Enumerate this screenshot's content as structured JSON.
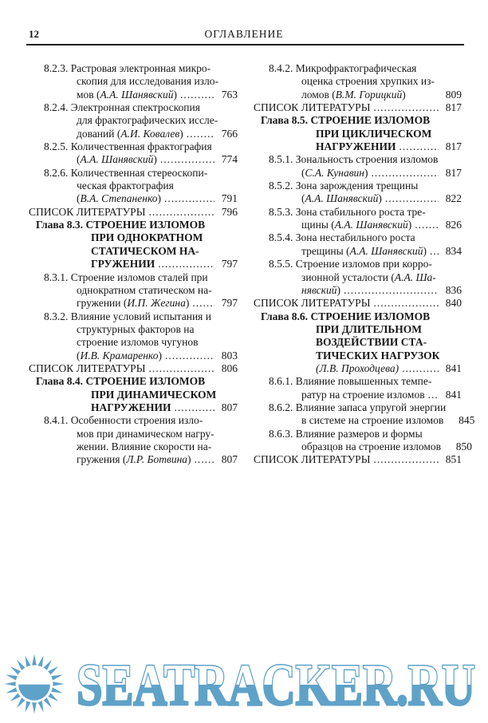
{
  "header": {
    "page_number": "12",
    "title": "ОГЛАВЛЕНИЕ"
  },
  "watermark": {
    "text": "SEATRACKER.RU",
    "color": "#5fa2c8",
    "icon": "sun"
  },
  "colors": {
    "text": "#161616",
    "rule": "#1c1c1c",
    "watermark_blue": "#5fa2c8",
    "background": "#ffffff"
  },
  "toc": {
    "columns": [
      {
        "entries": [
          {
            "kind": "item",
            "label": "8.2.3.",
            "lines": [
              {
                "segs": [
                  {
                    "t": "Растровая электронная микро-"
                  }
                ]
              },
              {
                "segs": [
                  {
                    "t": "скопия для исследования изло-"
                  }
                ]
              },
              {
                "segs": [
                  {
                    "t": "мов ("
                  },
                  {
                    "t": "А.А. Шанявский",
                    "i": true
                  },
                  {
                    "t": ")"
                  }
                ],
                "dots": true,
                "page": "763"
              }
            ]
          },
          {
            "kind": "item",
            "label": "8.2.4.",
            "lines": [
              {
                "segs": [
                  {
                    "t": "Электронная спектроскопия"
                  }
                ]
              },
              {
                "segs": [
                  {
                    "t": "для фрактографических иссле-"
                  }
                ]
              },
              {
                "segs": [
                  {
                    "t": "дований ("
                  },
                  {
                    "t": "А.И. Ковалев",
                    "i": true
                  },
                  {
                    "t": ")"
                  }
                ],
                "dots": true,
                "page": "766"
              }
            ]
          },
          {
            "kind": "item",
            "label": "8.2.5.",
            "lines": [
              {
                "segs": [
                  {
                    "t": "Количественная фрактография"
                  }
                ]
              },
              {
                "segs": [
                  {
                    "t": "("
                  },
                  {
                    "t": "А.А. Шанявский",
                    "i": true
                  },
                  {
                    "t": ")"
                  }
                ],
                "dots": true,
                "page": "774"
              }
            ]
          },
          {
            "kind": "item",
            "label": "8.2.6.",
            "lines": [
              {
                "segs": [
                  {
                    "t": "Количественная стереоскопи-"
                  }
                ]
              },
              {
                "segs": [
                  {
                    "t": "ческая фрактография"
                  }
                ]
              },
              {
                "segs": [
                  {
                    "t": "("
                  },
                  {
                    "t": "В.А. Степаненко",
                    "i": true
                  },
                  {
                    "t": ")"
                  }
                ],
                "dots": true,
                "page": "791"
              }
            ]
          },
          {
            "kind": "list",
            "label": "",
            "lines": [
              {
                "segs": [
                  {
                    "t": "СПИСОК ЛИТЕРАТУРЫ"
                  }
                ],
                "dots": true,
                "page": "796"
              }
            ]
          },
          {
            "kind": "chapter",
            "label": "Глава 8.3.",
            "lines": [
              {
                "segs": [
                  {
                    "t": "СТРОЕНИЕ ИЗЛОМОВ"
                  }
                ]
              },
              {
                "segs": [
                  {
                    "t": "ПРИ ОДНОКРАТНОМ"
                  }
                ]
              },
              {
                "segs": [
                  {
                    "t": "СТАТИЧЕСКОМ НА-"
                  }
                ]
              },
              {
                "segs": [
                  {
                    "t": "ГРУЖЕНИИ"
                  }
                ],
                "dots": true,
                "page": "797"
              }
            ]
          },
          {
            "kind": "item",
            "label": "8.3.1.",
            "lines": [
              {
                "segs": [
                  {
                    "t": "Строение изломов сталей при"
                  }
                ]
              },
              {
                "segs": [
                  {
                    "t": "однократном статическом на-"
                  }
                ]
              },
              {
                "segs": [
                  {
                    "t": "гружении ("
                  },
                  {
                    "t": "И.П. Жегина",
                    "i": true
                  },
                  {
                    "t": ")"
                  }
                ],
                "dots": true,
                "page": "797"
              }
            ]
          },
          {
            "kind": "item",
            "label": "8.3.2.",
            "lines": [
              {
                "segs": [
                  {
                    "t": "Влияние условий испытания и"
                  }
                ]
              },
              {
                "segs": [
                  {
                    "t": "структурных факторов на"
                  }
                ]
              },
              {
                "segs": [
                  {
                    "t": "строение изломов чугунов"
                  }
                ]
              },
              {
                "segs": [
                  {
                    "t": "("
                  },
                  {
                    "t": "И.В. Крамаренко",
                    "i": true
                  },
                  {
                    "t": ")"
                  }
                ],
                "dots": true,
                "page": "803"
              }
            ]
          },
          {
            "kind": "list",
            "label": "",
            "lines": [
              {
                "segs": [
                  {
                    "t": "СПИСОК ЛИТЕРАТУРЫ"
                  }
                ],
                "dots": true,
                "page": "806"
              }
            ]
          },
          {
            "kind": "chapter",
            "label": "Глава 8.4.",
            "lines": [
              {
                "segs": [
                  {
                    "t": "СТРОЕНИЕ ИЗЛОМОВ"
                  }
                ]
              },
              {
                "segs": [
                  {
                    "t": "ПРИ ДИНАМИЧЕСКОМ"
                  }
                ]
              },
              {
                "segs": [
                  {
                    "t": "НАГРУЖЕНИИ"
                  }
                ],
                "dots": true,
                "page": "807"
              }
            ]
          },
          {
            "kind": "item",
            "label": "8.4.1.",
            "lines": [
              {
                "segs": [
                  {
                    "t": "Особенности строения изло-"
                  }
                ]
              },
              {
                "segs": [
                  {
                    "t": "мов при динамическом нагру-"
                  }
                ]
              },
              {
                "segs": [
                  {
                    "t": "жении. Влияние скорости на-"
                  }
                ]
              },
              {
                "segs": [
                  {
                    "t": "гружения ("
                  },
                  {
                    "t": "Л.Р. Ботвина",
                    "i": true
                  },
                  {
                    "t": ")"
                  }
                ],
                "dots": true,
                "page": "807"
              }
            ]
          }
        ]
      },
      {
        "entries": [
          {
            "kind": "item",
            "label": "8.4.2.",
            "lines": [
              {
                "segs": [
                  {
                    "t": "Микрофрактографическая"
                  }
                ]
              },
              {
                "segs": [
                  {
                    "t": "оценка строения хрупких из-"
                  }
                ]
              },
              {
                "segs": [
                  {
                    "t": "ломов ("
                  },
                  {
                    "t": "В.М. Горицкий",
                    "i": true
                  },
                  {
                    "t": ")"
                  }
                ],
                "dots": false,
                "page": "809"
              }
            ]
          },
          {
            "kind": "list",
            "label": "",
            "lines": [
              {
                "segs": [
                  {
                    "t": "СПИСОК ЛИТЕРАТУРЫ"
                  }
                ],
                "dots": true,
                "page": "817"
              }
            ]
          },
          {
            "kind": "chapter",
            "label": "Глава 8.5.",
            "lines": [
              {
                "segs": [
                  {
                    "t": "СТРОЕНИЕ ИЗЛОМОВ"
                  }
                ]
              },
              {
                "segs": [
                  {
                    "t": "ПРИ ЦИКЛИЧЕСКОМ"
                  }
                ]
              },
              {
                "segs": [
                  {
                    "t": "НАГРУЖЕНИИ"
                  }
                ],
                "dots": true,
                "page": "817"
              }
            ]
          },
          {
            "kind": "item",
            "label": "8.5.1.",
            "lines": [
              {
                "segs": [
                  {
                    "t": "Зональность строения изломов"
                  }
                ]
              },
              {
                "segs": [
                  {
                    "t": "("
                  },
                  {
                    "t": "С.А. Кунавин",
                    "i": true
                  },
                  {
                    "t": ")"
                  }
                ],
                "dots": true,
                "page": "817"
              }
            ]
          },
          {
            "kind": "item",
            "label": "8.5.2.",
            "lines": [
              {
                "segs": [
                  {
                    "t": "Зона зарождения трещины"
                  }
                ]
              },
              {
                "segs": [
                  {
                    "t": "("
                  },
                  {
                    "t": "А.А. Шанявский",
                    "i": true
                  },
                  {
                    "t": ")"
                  }
                ],
                "dots": true,
                "page": "822"
              }
            ]
          },
          {
            "kind": "item",
            "label": "8.5.3.",
            "lines": [
              {
                "segs": [
                  {
                    "t": "Зона стабильного роста тре-"
                  }
                ]
              },
              {
                "segs": [
                  {
                    "t": "щины ("
                  },
                  {
                    "t": "А.А. Шанявский",
                    "i": true
                  },
                  {
                    "t": ")"
                  }
                ],
                "dots": true,
                "page": "826"
              }
            ]
          },
          {
            "kind": "item",
            "label": "8.5.4.",
            "lines": [
              {
                "segs": [
                  {
                    "t": "Зона нестабильного роста"
                  }
                ]
              },
              {
                "segs": [
                  {
                    "t": "трещины ("
                  },
                  {
                    "t": "А.А. Шанявский",
                    "i": true
                  },
                  {
                    "t": ")"
                  }
                ],
                "dots": true,
                "page": "834"
              }
            ]
          },
          {
            "kind": "item",
            "label": "8.5.5.",
            "lines": [
              {
                "segs": [
                  {
                    "t": "Строение изломов при корро-"
                  }
                ]
              },
              {
                "segs": [
                  {
                    "t": "зионной усталости ("
                  },
                  {
                    "t": "А.А. Ша-",
                    "i": true
                  }
                ]
              },
              {
                "segs": [
                  {
                    "t": "нявский",
                    "i": true
                  },
                  {
                    "t": ")"
                  }
                ],
                "dots": true,
                "page": "836"
              }
            ]
          },
          {
            "kind": "list",
            "label": "",
            "lines": [
              {
                "segs": [
                  {
                    "t": "СПИСОК ЛИТЕРАТУРЫ"
                  }
                ],
                "dots": true,
                "page": "840"
              }
            ]
          },
          {
            "kind": "chapter",
            "label": "Глава 8.6.",
            "lines": [
              {
                "segs": [
                  {
                    "t": "СТРОЕНИЕ ИЗЛОМОВ"
                  }
                ]
              },
              {
                "segs": [
                  {
                    "t": "ПРИ ДЛИТЕЛЬНОМ"
                  }
                ]
              },
              {
                "segs": [
                  {
                    "t": "ВОЗДЕЙСТВИИ СТА-"
                  }
                ]
              },
              {
                "segs": [
                  {
                    "t": "ТИЧЕСКИХ НАГРУЗОК"
                  }
                ]
              },
              {
                "segs": [
                  {
                    "t": "(Л.В. Проходцева)",
                    "i": true
                  }
                ],
                "dots": true,
                "page": "841"
              }
            ]
          },
          {
            "kind": "item",
            "label": "8.6.1.",
            "lines": [
              {
                "segs": [
                  {
                    "t": "Влияние повышенных темпе-"
                  }
                ]
              },
              {
                "segs": [
                  {
                    "t": "ратур на строение изломов"
                  }
                ],
                "dots": true,
                "page": "841"
              }
            ]
          },
          {
            "kind": "item",
            "label": "8.6.2.",
            "lines": [
              {
                "segs": [
                  {
                    "t": "Влияние запаса упругой энергии"
                  }
                ]
              },
              {
                "segs": [
                  {
                    "t": "в системе на строение изломов"
                  }
                ],
                "dots": false,
                "page": "845"
              }
            ]
          },
          {
            "kind": "item",
            "label": "8.6.3.",
            "lines": [
              {
                "segs": [
                  {
                    "t": "Влияние размеров и формы"
                  }
                ]
              },
              {
                "segs": [
                  {
                    "t": "образцов на строение изломов"
                  }
                ],
                "dots": false,
                "page": "850"
              }
            ]
          },
          {
            "kind": "list",
            "label": "",
            "lines": [
              {
                "segs": [
                  {
                    "t": "СПИСОК ЛИТЕРАТУРЫ"
                  }
                ],
                "dots": true,
                "page": "851"
              }
            ]
          }
        ]
      }
    ]
  }
}
